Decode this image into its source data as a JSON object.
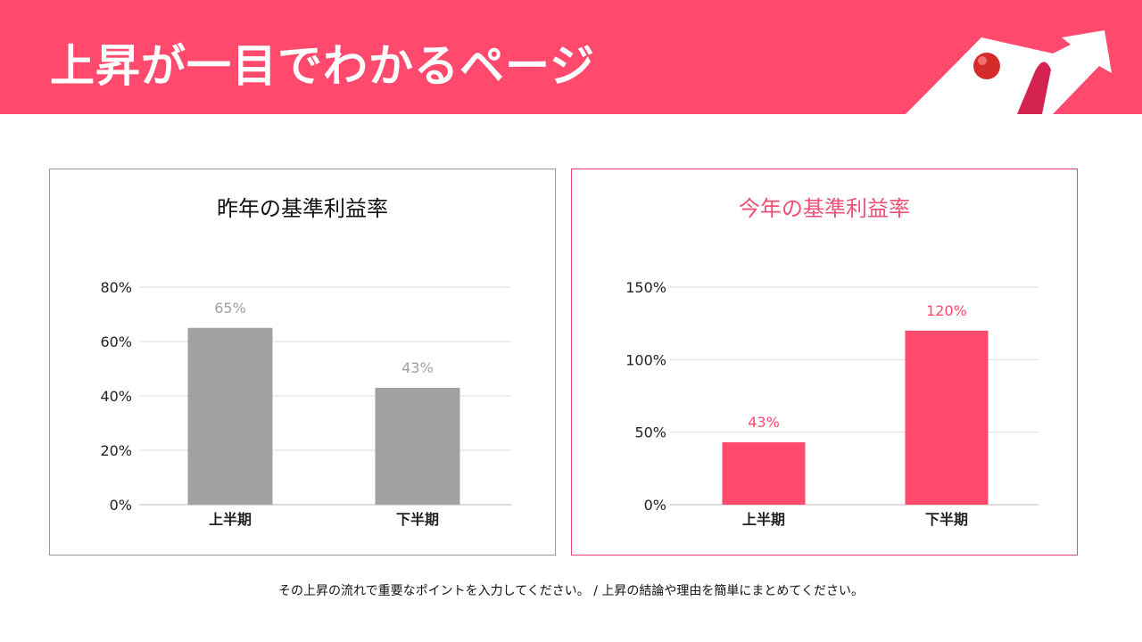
{
  "header": {
    "title": "上昇が一目でわかるページ",
    "accent": "#FF4A6E"
  },
  "chart_data": [
    {
      "type": "bar",
      "title": "昨年の基準利益率",
      "categories": [
        "上半期",
        "下半期"
      ],
      "values": [
        65,
        43
      ],
      "data_labels": [
        "65%",
        "43%"
      ],
      "ylim": [
        0,
        80
      ],
      "yticks": [
        0,
        20,
        40,
        60,
        80
      ],
      "ytick_labels": [
        "0%",
        "20%",
        "40%",
        "60%",
        "80%"
      ],
      "grid": true,
      "bar_color": "#A2A0A3",
      "label_color": "#A2A0A3"
    },
    {
      "type": "bar",
      "title": "今年の基準利益率",
      "categories": [
        "上半期",
        "下半期"
      ],
      "values": [
        43,
        120
      ],
      "data_labels": [
        "43%",
        "120%"
      ],
      "ylim": [
        0,
        150
      ],
      "yticks": [
        0,
        50,
        100,
        150
      ],
      "ytick_labels": [
        "0%",
        "50%",
        "100%",
        "150%"
      ],
      "grid": true,
      "bar_color": "#FF4A6E",
      "label_color": "#FF4A6E"
    }
  ],
  "footer": {
    "text": "その上昇の流れで重要なポイントを入力してください。 / 上昇の結論や理由を簡単にまとめてください。"
  }
}
